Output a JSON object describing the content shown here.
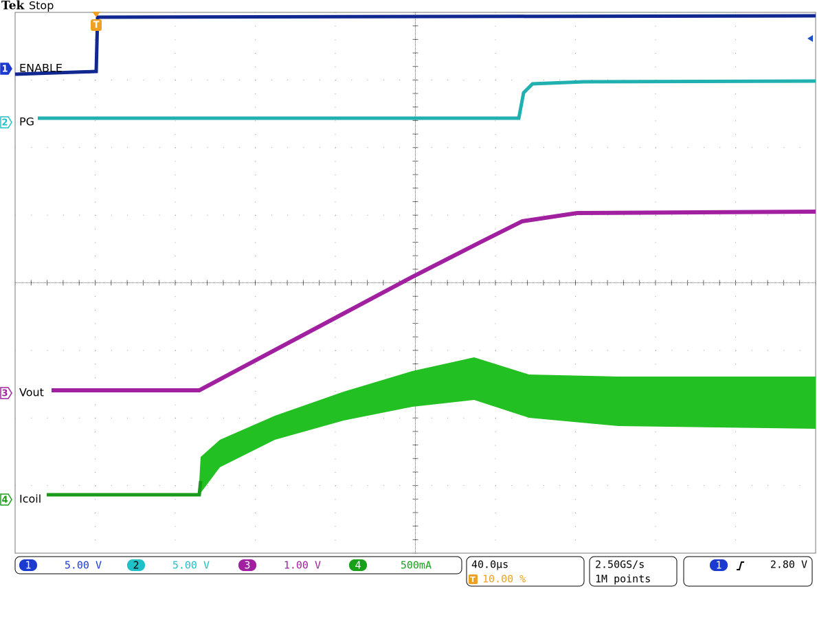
{
  "header": {
    "brand": "Tek",
    "status": "Stop"
  },
  "trigger_marker": "T",
  "channels": [
    {
      "number": "1",
      "label": "ENABLE",
      "scale": "5.00 V"
    },
    {
      "number": "2",
      "label": "PG",
      "scale": "5.00 V"
    },
    {
      "number": "3",
      "label": "Vout",
      "scale": "1.00 V"
    },
    {
      "number": "4",
      "label": "Icoil",
      "scale": "500mA"
    }
  ],
  "timebase": {
    "scale": "40.0µs",
    "trigger_icon": "T",
    "trigger_position": "10.00 %"
  },
  "acquisition": {
    "sample_rate": "2.50GS/s",
    "record_length": "1M points"
  },
  "trigger": {
    "source": "1",
    "level": "2.80 V"
  }
}
